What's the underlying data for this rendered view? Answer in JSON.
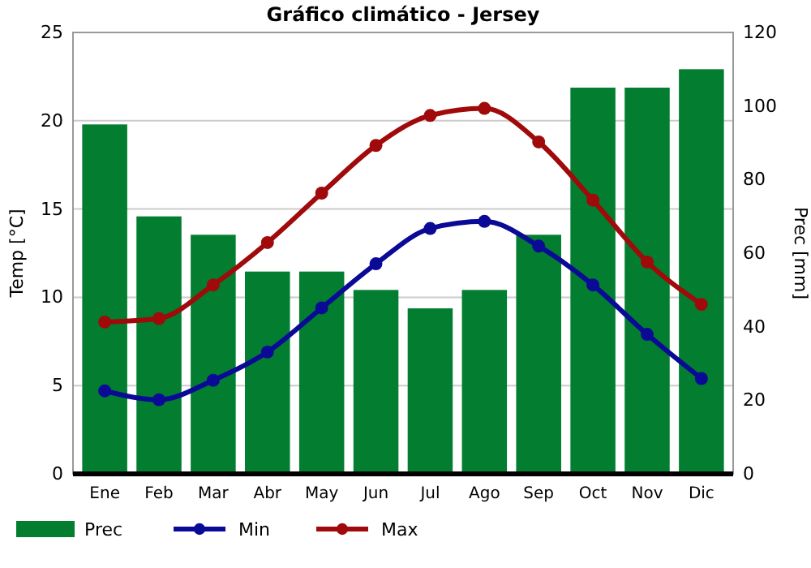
{
  "chart_data": {
    "type": "bar",
    "title": "Gráfico climático - Jersey",
    "ylabel": "Temp [°C]",
    "y2label": "Prec [mm]",
    "categories": [
      "Ene",
      "Feb",
      "Mar",
      "Abr",
      "May",
      "Jun",
      "Jul",
      "Ago",
      "Sep",
      "Oct",
      "Nov",
      "Dic"
    ],
    "series": [
      {
        "name": "Prec",
        "axis": "y2",
        "color": "#037d30",
        "values": [
          95,
          70,
          65,
          55,
          55,
          50,
          45,
          50,
          65,
          105,
          105,
          110
        ]
      },
      {
        "name": "Min",
        "type": "line",
        "axis": "y",
        "color": "#0a0a96",
        "values": [
          4.7,
          4.2,
          5.3,
          6.9,
          9.4,
          11.9,
          13.9,
          14.3,
          12.9,
          10.7,
          7.9,
          5.4
        ]
      },
      {
        "name": "Max",
        "type": "line",
        "axis": "y",
        "color": "#a00a0a",
        "values": [
          8.6,
          8.8,
          10.7,
          13.1,
          15.9,
          18.6,
          20.3,
          20.7,
          18.8,
          15.5,
          12.0,
          9.6
        ]
      }
    ],
    "ylim": [
      0,
      25
    ],
    "yticks": [
      0,
      5,
      10,
      15,
      20,
      25
    ],
    "y2lim": [
      0,
      120
    ],
    "y2ticks": [
      0,
      20,
      40,
      60,
      80,
      100,
      120
    ],
    "grid": "y",
    "legend": "bottom",
    "marker": "circle",
    "line_style": "solid"
  }
}
